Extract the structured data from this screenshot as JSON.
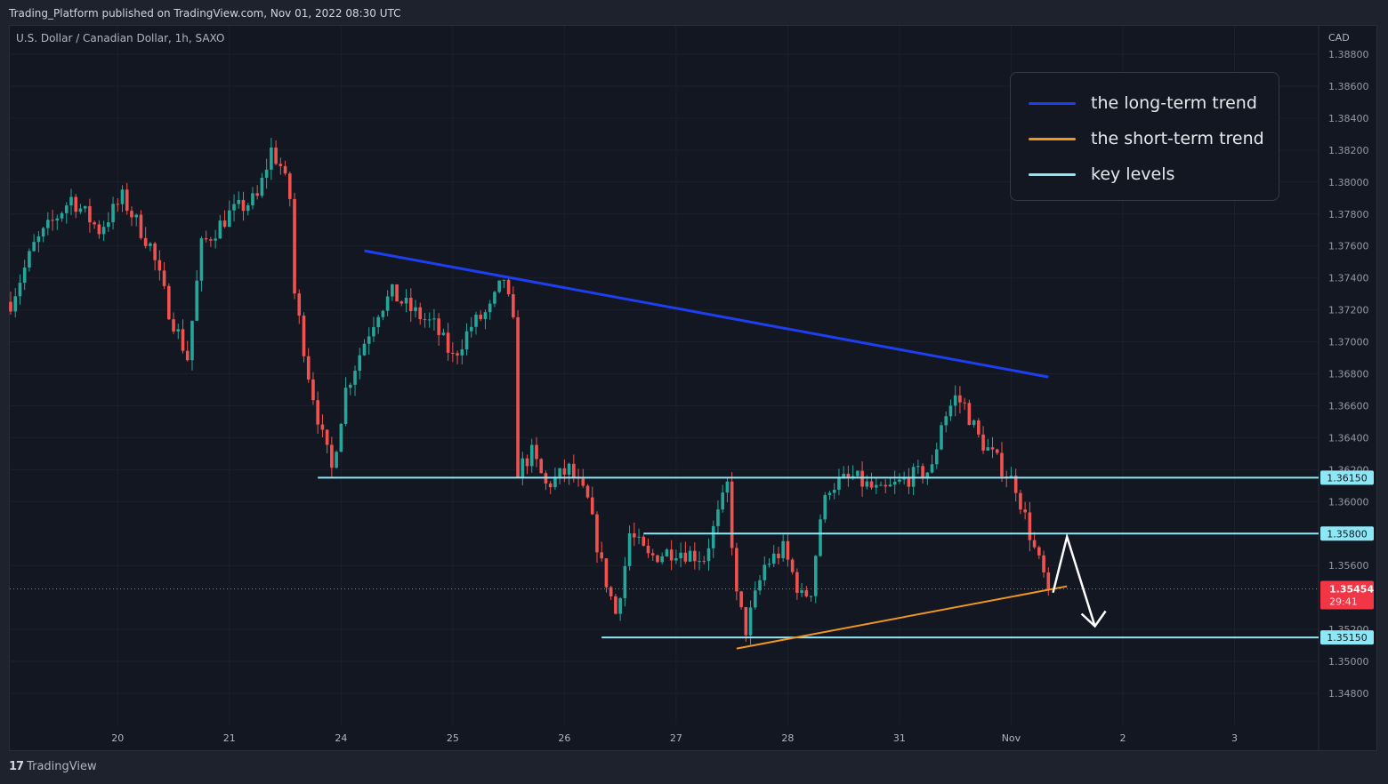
{
  "header": {
    "published": "Trading_Platform published on TradingView.com, Nov 01, 2022 08:30 UTC",
    "symbol": "U.S. Dollar / Canadian Dollar, 1h, SAXO"
  },
  "legend": [
    {
      "label": "the long-term trend",
      "color": "#1e3ff0"
    },
    {
      "label": "the short-term trend",
      "color": "#f0961e"
    },
    {
      "label": "key levels",
      "color": "#8ee7f5"
    }
  ],
  "footer": {
    "brand": "TradingView",
    "logo": "TV"
  },
  "colors": {
    "up": "#26a69a",
    "down": "#ef5350",
    "bg": "#131722",
    "grid": "#1f2330"
  },
  "chart_data": {
    "type": "candlestick",
    "currency": "CAD",
    "ylim": [
      1.347,
      1.3888
    ],
    "yticks": [
      "1.38800",
      "1.38600",
      "1.38400",
      "1.38200",
      "1.38000",
      "1.37800",
      "1.37600",
      "1.37400",
      "1.37200",
      "1.37000",
      "1.36800",
      "1.36600",
      "1.36400",
      "1.36200",
      "1.36000",
      "1.35600",
      "1.35200",
      "1.35000",
      "1.34800"
    ],
    "xticks": [
      {
        "label": "20",
        "hour": 23
      },
      {
        "label": "21",
        "hour": 47
      },
      {
        "label": "24",
        "hour": 71
      },
      {
        "label": "25",
        "hour": 95
      },
      {
        "label": "26",
        "hour": 119
      },
      {
        "label": "27",
        "hour": 143
      },
      {
        "label": "28",
        "hour": 167
      },
      {
        "label": "31",
        "hour": 191
      },
      {
        "label": "Nov",
        "hour": 215
      },
      {
        "label": "2",
        "hour": 239
      },
      {
        "label": "3",
        "hour": 263
      }
    ],
    "price_path_hour_close": [
      [
        0,
        1.3725
      ],
      [
        5,
        1.376
      ],
      [
        13,
        1.379
      ],
      [
        19,
        1.377
      ],
      [
        24,
        1.379
      ],
      [
        30,
        1.376
      ],
      [
        34,
        1.372
      ],
      [
        38,
        1.369
      ],
      [
        41,
        1.376
      ],
      [
        47,
        1.378
      ],
      [
        53,
        1.379
      ],
      [
        56,
        1.382
      ],
      [
        58,
        1.381
      ],
      [
        60,
        1.379
      ],
      [
        61,
        1.373
      ],
      [
        64,
        1.368
      ],
      [
        67,
        1.364
      ],
      [
        69,
        1.362
      ],
      [
        72,
        1.367
      ],
      [
        76,
        1.37
      ],
      [
        79,
        1.372
      ],
      [
        82,
        1.373
      ],
      [
        86,
        1.372
      ],
      [
        91,
        1.371
      ],
      [
        95,
        1.369
      ],
      [
        99,
        1.371
      ],
      [
        103,
        1.372
      ],
      [
        106,
        1.374
      ],
      [
        108,
        1.371
      ],
      [
        109,
        1.362
      ],
      [
        112,
        1.363
      ],
      [
        115,
        1.361
      ],
      [
        120,
        1.362
      ],
      [
        124,
        1.36
      ],
      [
        127,
        1.356
      ],
      [
        130,
        1.353
      ],
      [
        132,
        1.356
      ],
      [
        133,
        1.358
      ],
      [
        137,
        1.3565
      ],
      [
        143,
        1.357
      ],
      [
        149,
        1.3565
      ],
      [
        153,
        1.36
      ],
      [
        154,
        1.361
      ],
      [
        156,
        1.354
      ],
      [
        158,
        1.352
      ],
      [
        162,
        1.356
      ],
      [
        166,
        1.357
      ],
      [
        170,
        1.354
      ],
      [
        172,
        1.3545
      ],
      [
        174,
        1.359
      ],
      [
        176,
        1.361
      ],
      [
        181,
        1.3615
      ],
      [
        187,
        1.3605
      ],
      [
        193,
        1.3615
      ],
      [
        198,
        1.362
      ],
      [
        200,
        1.365
      ],
      [
        203,
        1.3665
      ],
      [
        205,
        1.366
      ],
      [
        208,
        1.364
      ],
      [
        212,
        1.3625
      ],
      [
        216,
        1.361
      ],
      [
        218,
        1.359
      ],
      [
        220,
        1.357
      ],
      [
        223,
        1.3545
      ]
    ],
    "key_levels": [
      {
        "price": 1.3615,
        "label": "1.36150",
        "from_hour": 66
      },
      {
        "price": 1.358,
        "label": "1.35800",
        "from_hour": 136
      },
      {
        "price": 1.3515,
        "label": "1.35150",
        "from_hour": 127
      }
    ],
    "long_term_trend": [
      [
        76,
        1.3757
      ],
      [
        223,
        1.3678
      ]
    ],
    "short_term_trend": [
      [
        156,
        1.3508
      ],
      [
        227,
        1.3547
      ]
    ],
    "projection_arrow": [
      [
        224,
        1.3543
      ],
      [
        227,
        1.3578
      ],
      [
        233,
        1.3522
      ]
    ],
    "last_price": {
      "value": "1.35454",
      "countdown": "29:41",
      "price": 1.35454
    }
  }
}
